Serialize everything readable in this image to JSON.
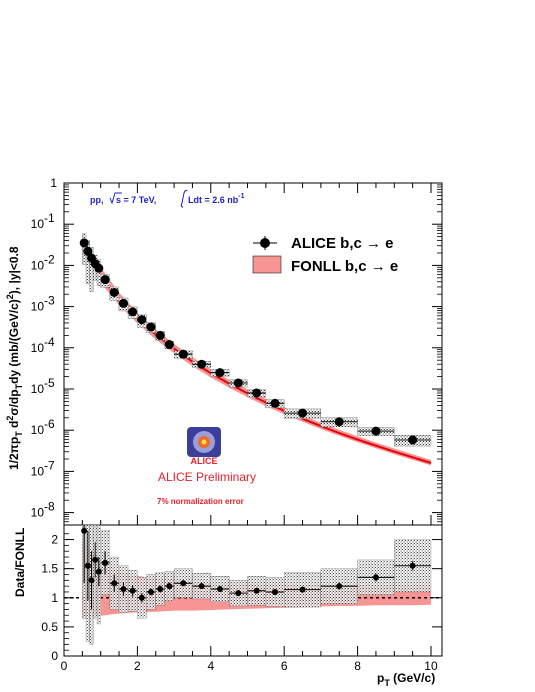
{
  "chart_data": [
    {
      "type": "scatter",
      "panel": "spectrum",
      "title": "",
      "xlabel": "",
      "ylabel": "1/2πp_T d²σ/dp_T dy (mb/(GeV/c)²), |y|<0.8",
      "ylabel_parts": {
        "a": "1/2πp",
        "b": "T",
        "c": " d",
        "d": "2",
        "e": "σ/dp",
        "f": "T",
        "g": "dy (mb/(GeV/c)",
        "h": "2",
        "i": "), |y|<0.8"
      },
      "xlim": [
        0,
        10.3
      ],
      "ylim": [
        5e-09,
        1
      ],
      "yscale": "log",
      "ytick_exponents": [
        0,
        -1,
        -2,
        -3,
        -4,
        -5,
        -6,
        -7,
        -8
      ],
      "ytick_label_one": "1",
      "ytick_label_base": "10",
      "grid": false,
      "legend_placement": "top-right",
      "legend": {
        "data_label": "ALICE b,c → e",
        "model_label": "FONLL b,c → e"
      },
      "annotation": {
        "info_a": "pp,",
        "info_b": "s = 7 TeV,",
        "info_c": "Ldt = 2.6 nb",
        "info_c_sup": "-1",
        "preliminary": "ALICE Preliminary",
        "logo_text": "ALICE",
        "norm_error": "7% normalization error"
      },
      "series": [
        {
          "name": "ALICE b,c → e",
          "x": [
            0.55,
            0.65,
            0.75,
            0.85,
            0.95,
            1.12,
            1.37,
            1.62,
            1.87,
            2.12,
            2.37,
            2.62,
            2.87,
            3.25,
            3.75,
            4.25,
            4.75,
            5.25,
            5.75,
            6.5,
            7.5,
            8.5,
            9.5
          ],
          "xerr": [
            0.05,
            0.05,
            0.05,
            0.05,
            0.05,
            0.125,
            0.125,
            0.125,
            0.125,
            0.125,
            0.125,
            0.125,
            0.125,
            0.25,
            0.25,
            0.25,
            0.25,
            0.25,
            0.25,
            0.5,
            0.5,
            0.5,
            0.5
          ],
          "y": [
            0.035,
            0.022,
            0.015,
            0.011,
            0.0085,
            0.0045,
            0.0022,
            0.0012,
            0.00075,
            0.00048,
            0.00032,
            0.0002,
            0.00012,
            7e-05,
            4e-05,
            2.5e-05,
            1.4e-05,
            8e-06,
            4.5e-06,
            2.6e-06,
            1.6e-06,
            9.5e-07,
            5.8e-07
          ]
        },
        {
          "name": "FONLL b,c → e",
          "x": [
            0.5,
            1.0,
            1.5,
            2.0,
            2.5,
            3.0,
            3.5,
            4.0,
            4.5,
            5.0,
            5.5,
            6.0,
            6.5,
            7.0,
            7.5,
            8.0,
            8.5,
            9.0,
            9.5,
            10.0
          ],
          "y": [
            0.025,
            0.0055,
            0.0015,
            0.00052,
            0.00021,
            9.5e-05,
            4.6e-05,
            2.4e-05,
            1.35e-05,
            7.8e-06,
            4.7e-06,
            2.95e-06,
            1.9e-06,
            1.26e-06,
            8.5e-07,
            5.9e-07,
            4.2e-07,
            3e-07,
            2.2e-07,
            1.6e-07
          ],
          "y_low": [
            0.016,
            0.0038,
            0.0011,
            0.00039,
            0.00016,
            7.4e-05,
            3.6e-05,
            1.9e-05,
            1.08e-05,
            6.3e-06,
            3.85e-06,
            2.45e-06,
            1.6e-06,
            1.07e-06,
            7.3e-07,
            5.1e-07,
            3.65e-07,
            2.6e-07,
            1.9e-07,
            1.4e-07
          ],
          "y_high": [
            0.05,
            0.009,
            0.0022,
            0.00072,
            0.00028,
            0.000124,
            5.9e-05,
            3e-05,
            1.68e-05,
            9.7e-06,
            5.8e-06,
            3.6e-06,
            2.3e-06,
            1.52e-06,
            1.03e-06,
            7.1e-07,
            5e-07,
            3.6e-07,
            2.6e-07,
            1.9e-07
          ]
        }
      ]
    },
    {
      "type": "scatter",
      "panel": "ratio",
      "title": "",
      "xlabel": "p_T (GeV/c)",
      "xlabel_parts": {
        "a": "p",
        "b": "T",
        "c": " (GeV/c)"
      },
      "ylabel": "Data/FONLL",
      "xlim": [
        0,
        10.3
      ],
      "ylim": [
        0,
        2.25
      ],
      "xticks": [
        0,
        2,
        4,
        6,
        8,
        10
      ],
      "yticks": [
        0,
        0.5,
        1,
        1.5,
        2
      ],
      "reference_line": 1,
      "grid": false,
      "series": [
        {
          "name": "Data/FONLL",
          "x": [
            0.55,
            0.65,
            0.75,
            0.85,
            0.95,
            1.12,
            1.37,
            1.62,
            1.87,
            2.12,
            2.37,
            2.62,
            2.87,
            3.25,
            3.75,
            4.25,
            4.75,
            5.25,
            5.75,
            6.5,
            7.5,
            8.5,
            9.5
          ],
          "xerr": [
            0.05,
            0.05,
            0.05,
            0.05,
            0.05,
            0.125,
            0.125,
            0.125,
            0.125,
            0.125,
            0.125,
            0.125,
            0.125,
            0.25,
            0.25,
            0.25,
            0.25,
            0.25,
            0.25,
            0.5,
            0.5,
            0.5,
            0.5
          ],
          "y": [
            2.15,
            1.55,
            1.3,
            1.65,
            1.45,
            1.6,
            1.25,
            1.15,
            1.12,
            1.0,
            1.1,
            1.15,
            1.2,
            1.25,
            1.2,
            1.15,
            1.08,
            1.12,
            1.1,
            1.14,
            1.2,
            1.35,
            1.55
          ],
          "stat_err": [
            0.9,
            0.6,
            0.5,
            0.3,
            0.25,
            0.2,
            0.15,
            0.12,
            0.1,
            0.08,
            0.06,
            0.06,
            0.06,
            0.05,
            0.05,
            0.05,
            0.05,
            0.05,
            0.05,
            0.05,
            0.06,
            0.07,
            0.08
          ],
          "syst_err": [
            1.5,
            1.3,
            1.1,
            1.0,
            0.9,
            0.55,
            0.45,
            0.4,
            0.35,
            0.35,
            0.3,
            0.28,
            0.25,
            0.25,
            0.22,
            0.22,
            0.22,
            0.25,
            0.25,
            0.3,
            0.3,
            0.3,
            0.45
          ]
        },
        {
          "name": "FONLL uncertainty",
          "x": [
            0.5,
            1.0,
            1.5,
            2.0,
            2.5,
            3.0,
            3.5,
            4.0,
            4.5,
            5.0,
            5.5,
            6.0,
            6.5,
            7.0,
            7.5,
            8.0,
            8.5,
            9.0,
            9.5,
            10.0
          ],
          "y_low": [
            0.64,
            0.69,
            0.73,
            0.75,
            0.76,
            0.78,
            0.78,
            0.79,
            0.8,
            0.81,
            0.82,
            0.83,
            0.84,
            0.85,
            0.86,
            0.86,
            0.87,
            0.87,
            0.87,
            0.88
          ],
          "y_high": [
            2.0,
            1.65,
            1.45,
            1.38,
            1.33,
            1.31,
            1.28,
            1.26,
            1.25,
            1.24,
            1.24,
            1.23,
            1.22,
            1.22,
            1.22,
            1.22,
            1.22,
            1.22,
            1.21,
            1.21
          ]
        }
      ]
    }
  ]
}
